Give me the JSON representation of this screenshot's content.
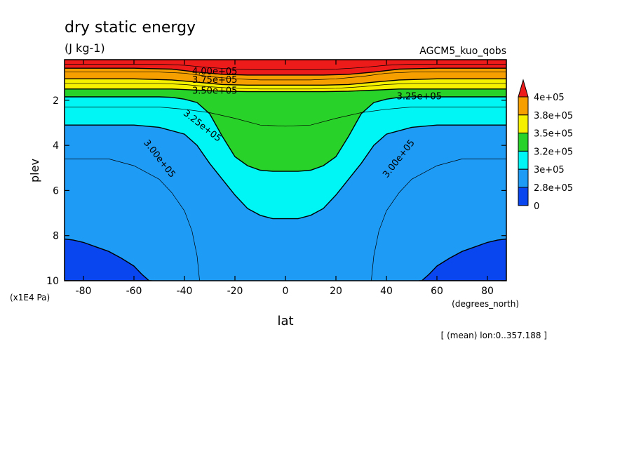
{
  "chart_data": {
    "type": "contour",
    "title": "dry static energy",
    "subtitle": "(J kg-1)",
    "experiment": "AGCM5_kuo_qobs",
    "xlabel": "lat",
    "x_units": "(degrees_north)",
    "ylabel": "plev",
    "y_units": "(x1E4 Pa)",
    "xlim": [
      -87.5,
      87.5
    ],
    "ylim": [
      10,
      0.2
    ],
    "x_ticks": [
      "-80",
      "-60",
      "-40",
      "-20",
      "0",
      "20",
      "40",
      "60",
      "80"
    ],
    "x_tick_values": [
      -80,
      -60,
      -40,
      -20,
      0,
      20,
      40,
      60,
      80
    ],
    "y_ticks": [
      "2",
      "4",
      "6",
      "8",
      "10"
    ],
    "y_tick_values": [
      2,
      4,
      6,
      8,
      10
    ],
    "note": "[ (mean) lon:0..357.188 ]",
    "colorbar": {
      "labels": [
        "4e+05",
        "3.8e+05",
        "3.5e+05",
        "3.2e+05",
        "3e+05",
        "2.8e+05",
        "0"
      ],
      "colors": [
        "#ee1b1b",
        "#f5a000",
        "#f5f000",
        "#28d228",
        "#00f5f5",
        "#1e9bf5",
        "#0a46f0"
      ]
    },
    "filled_regions": [
      {
        "level": "0",
        "color": "#0a46f0",
        "lat": [
          -87.5,
          -84,
          -80,
          -75,
          -70,
          -65,
          -60,
          -57,
          -54,
          -53
        ],
        "plev": [
          8.15,
          8.2,
          8.3,
          8.5,
          8.7,
          9.0,
          9.35,
          9.7,
          10,
          10
        ],
        "side": "south-bottom"
      },
      {
        "level": "3.0e+05",
        "color": "#00f5f5",
        "lat": [
          -87.5,
          -80,
          -70,
          -60,
          -50,
          -40,
          -35,
          -30,
          -25,
          -20,
          -15,
          -10,
          -5,
          0
        ],
        "plev": [
          3.1,
          3.1,
          3.1,
          3.1,
          3.2,
          3.5,
          4.0,
          4.8,
          5.5,
          6.2,
          6.8,
          7.1,
          7.25,
          7.25
        ]
      },
      {
        "level": "3.25e+05",
        "color": "#28d228",
        "lat": [
          -87.5,
          -80,
          -70,
          -60,
          -50,
          -45,
          -40,
          -35,
          -30,
          -25,
          -20,
          -15,
          -10,
          -5,
          0
        ],
        "plev": [
          1.85,
          1.85,
          1.85,
          1.85,
          1.85,
          1.87,
          1.95,
          2.1,
          2.6,
          3.6,
          4.5,
          4.9,
          5.1,
          5.15,
          5.15
        ]
      },
      {
        "level": "3.5e+05",
        "color": "#f5f000",
        "lat": [
          -87.5,
          -60,
          -45,
          -35,
          -25,
          -15,
          0
        ],
        "plev": [
          1.5,
          1.5,
          1.5,
          1.55,
          1.6,
          1.62,
          1.62
        ]
      },
      {
        "level": "3.75e+05",
        "color": "#f5a000",
        "lat": [
          -87.5,
          -60,
          -45,
          -35,
          -25,
          -15,
          0
        ],
        "plev": [
          1.05,
          1.05,
          1.1,
          1.2,
          1.3,
          1.33,
          1.33
        ]
      },
      {
        "level": "4.0e+05",
        "color": "#ee1b1b",
        "lat": [
          -87.5,
          -60,
          -45,
          -35,
          -25,
          -15,
          0
        ],
        "plev": [
          0.58,
          0.58,
          0.62,
          0.75,
          0.85,
          0.88,
          0.88
        ]
      }
    ],
    "thin_contours": [
      {
        "lat": [
          -87.5,
          -70,
          -60,
          -50,
          -45,
          -40,
          -37,
          -35,
          -34
        ],
        "plev": [
          4.6,
          4.6,
          4.9,
          5.5,
          6.1,
          6.9,
          7.8,
          8.9,
          10
        ]
      },
      {
        "lat": [
          -87.5,
          -50,
          -40,
          -30,
          -20,
          -10,
          0
        ],
        "plev": [
          2.3,
          2.3,
          2.4,
          2.55,
          2.8,
          3.1,
          3.15
        ]
      },
      {
        "lat": [
          -87.5,
          -50,
          -40,
          -30,
          -20,
          -10,
          0
        ],
        "plev": [
          0.4,
          0.4,
          0.45,
          0.55,
          0.62,
          0.65,
          0.65
        ]
      },
      {
        "lat": [
          -87.5,
          -50,
          -40,
          -30,
          -20,
          -10,
          0
        ],
        "plev": [
          0.75,
          0.75,
          0.8,
          0.95,
          1.05,
          1.1,
          1.1
        ]
      },
      {
        "lat": [
          -87.5,
          -50,
          -40,
          -30,
          -20,
          -10,
          0
        ],
        "plev": [
          1.25,
          1.25,
          1.3,
          1.4,
          1.47,
          1.5,
          1.5
        ]
      }
    ],
    "contour_labels": [
      {
        "text": "4.00e+05",
        "lat": -28,
        "plev": 0.75,
        "angle": 0
      },
      {
        "text": "3.75e+05",
        "lat": -28,
        "plev": 1.12,
        "angle": 0
      },
      {
        "text": "3.50e+05",
        "lat": -28,
        "plev": 1.6,
        "angle": 0
      },
      {
        "text": "3.25e+05",
        "lat": 53,
        "plev": 1.85,
        "angle": 0
      },
      {
        "text": "3.25e+05",
        "lat": -33,
        "plev": 3.15,
        "angle": 38
      },
      {
        "text": "3.00e+05",
        "lat": -50,
        "plev": 4.6,
        "angle": 52
      },
      {
        "text": "3.00e+05",
        "lat": 45,
        "plev": 4.6,
        "angle": -52
      }
    ]
  }
}
